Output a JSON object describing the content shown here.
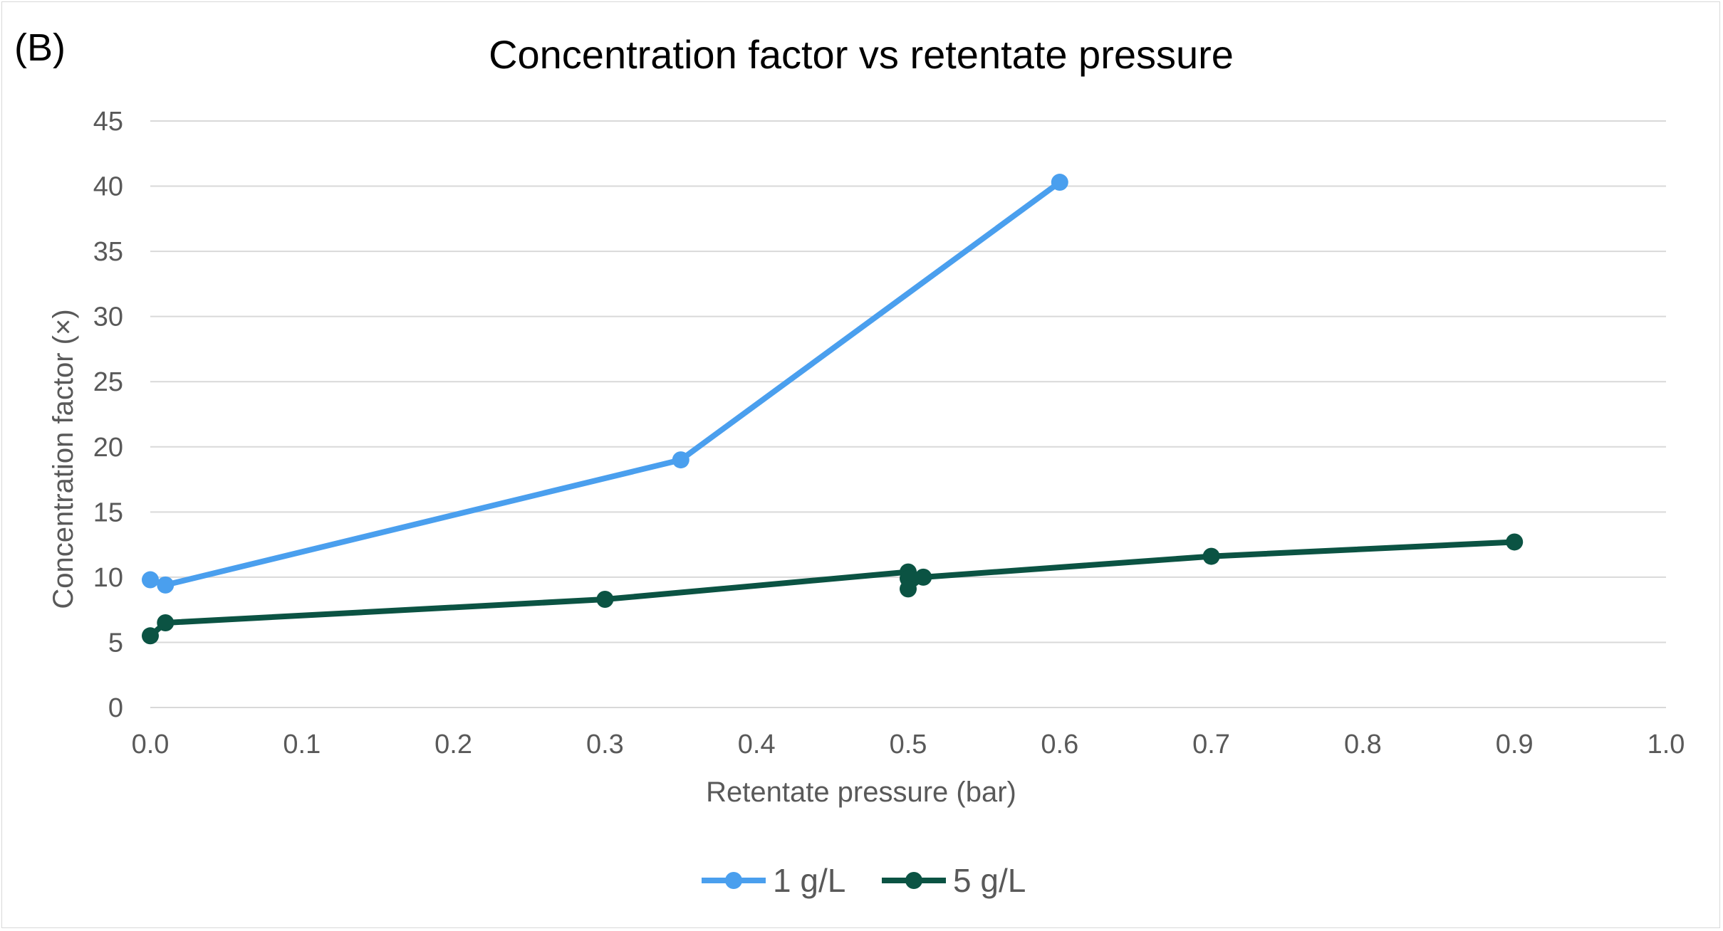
{
  "panel_label": "(B)",
  "chart_data": {
    "type": "line",
    "title": "Concentration factor vs retentate pressure",
    "xlabel": "Retentate pressure (bar)",
    "ylabel": "Concentration factor (×)",
    "xlim": [
      0.0,
      1.0
    ],
    "ylim": [
      0,
      45
    ],
    "xticks": [
      "0.0",
      "0.1",
      "0.2",
      "0.3",
      "0.4",
      "0.5",
      "0.6",
      "0.7",
      "0.8",
      "0.9",
      "1.0"
    ],
    "yticks": [
      "0",
      "5",
      "10",
      "15",
      "20",
      "25",
      "30",
      "35",
      "40",
      "45"
    ],
    "grid": "horizontal",
    "legend_position": "bottom",
    "series": [
      {
        "name": "1 g/L",
        "color": "#4A9FEE",
        "x": [
          0.0,
          0.01,
          0.35,
          0.6
        ],
        "y": [
          9.8,
          9.4,
          19.0,
          40.3
        ]
      },
      {
        "name": "5 g/L",
        "color": "#0B5343",
        "x": [
          0.0,
          0.01,
          0.3,
          0.5,
          0.5,
          0.5,
          0.51,
          0.7,
          0.9
        ],
        "y": [
          5.5,
          6.5,
          8.3,
          10.4,
          9.9,
          9.1,
          10.0,
          11.6,
          12.7
        ]
      }
    ]
  }
}
